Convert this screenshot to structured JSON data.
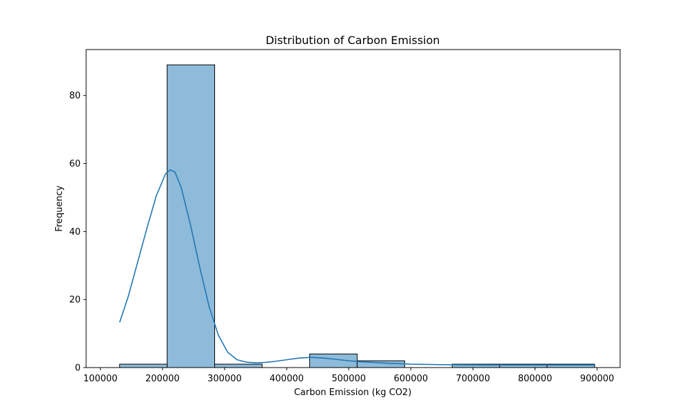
{
  "chart_data": {
    "type": "bar",
    "title": "Distribution of Carbon Emission",
    "xlabel": "Carbon Emission (kg CO2)",
    "ylabel": "Frequency",
    "xlim": [
      77000,
      937000
    ],
    "ylim": [
      0,
      93.5
    ],
    "x_ticks": [
      100000,
      200000,
      300000,
      400000,
      500000,
      600000,
      700000,
      800000,
      900000
    ],
    "y_ticks": [
      0,
      20,
      40,
      60,
      80
    ],
    "grid": false,
    "legend": "none",
    "bins": [
      {
        "start": 131000,
        "end": 207500,
        "count": 1
      },
      {
        "start": 207500,
        "end": 284000,
        "count": 89
      },
      {
        "start": 284000,
        "end": 360500,
        "count": 1
      },
      {
        "start": 360500,
        "end": 437000,
        "count": 0
      },
      {
        "start": 437000,
        "end": 513500,
        "count": 4
      },
      {
        "start": 513500,
        "end": 590000,
        "count": 2
      },
      {
        "start": 590000,
        "end": 666500,
        "count": 0
      },
      {
        "start": 666500,
        "end": 743000,
        "count": 1
      },
      {
        "start": 743000,
        "end": 819500,
        "count": 1
      },
      {
        "start": 819500,
        "end": 896000,
        "count": 1
      }
    ],
    "kde": {
      "x": [
        131000,
        145000,
        160000,
        175000,
        190000,
        205000,
        212000,
        220000,
        230000,
        245000,
        260000,
        275000,
        290000,
        305000,
        320000,
        335000,
        350000,
        365000,
        380000,
        400000,
        420000,
        440000,
        460000,
        480000,
        500000,
        520000,
        540000,
        560000,
        580000,
        600000,
        650000,
        700000,
        750000,
        800000,
        850000,
        896000
      ],
      "y": [
        13.3,
        21,
        31,
        41,
        50.5,
        57,
        58.1,
        57.5,
        53,
        42,
        29.5,
        18,
        9.5,
        4.5,
        2.3,
        1.6,
        1.4,
        1.5,
        1.8,
        2.3,
        2.8,
        3.0,
        2.8,
        2.4,
        2.0,
        1.7,
        1.5,
        1.3,
        1.15,
        1.0,
        0.85,
        0.8,
        0.78,
        0.78,
        0.78,
        0.78
      ]
    },
    "colors": {
      "bar_fill": "#8ebbd9",
      "bar_edge": "#000000",
      "kde_line": "#1f77b4",
      "axes": "#000000"
    }
  }
}
